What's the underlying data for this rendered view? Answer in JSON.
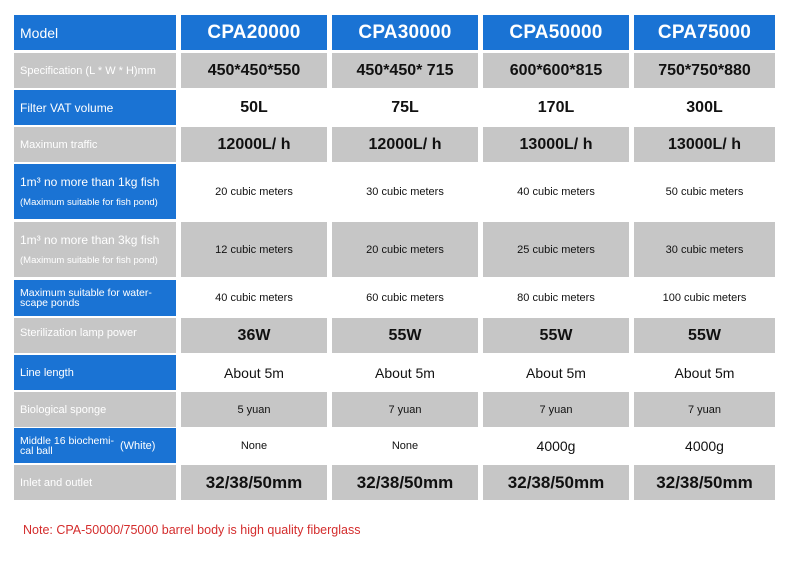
{
  "table": {
    "header_label": "Model",
    "models": [
      "CPA20000",
      "CPA30000",
      "CPA50000",
      "CPA75000"
    ],
    "rows": [
      {
        "label": "Specification (L * W * H)mm",
        "values": [
          "450*450*550",
          "450*450* 715",
          "600*600*815",
          "750*750*880"
        ]
      },
      {
        "label": "Filter VAT volume",
        "values": [
          "50L",
          "75L",
          "170L",
          "300L"
        ]
      },
      {
        "label": "Maximum traffic",
        "values": [
          "12000L/ h",
          "12000L/ h",
          "13000L/ h",
          "13000L/ h"
        ]
      },
      {
        "label": "1m³ no more than 1kg fish",
        "sublabel": "(Maximum suitable for fish pond)",
        "values": [
          "20 cubic meters",
          "30 cubic meters",
          "40 cubic meters",
          "50 cubic meters"
        ]
      },
      {
        "label": "1m³ no more than 3kg fish",
        "sublabel": "(Maximum suitable for fish pond)",
        "values": [
          "12 cubic meters",
          "20 cubic meters",
          "25 cubic meters",
          "30 cubic meters"
        ]
      },
      {
        "label": "Maximum suitable for water-scape ponds",
        "values": [
          "40 cubic meters",
          "60 cubic meters",
          "80 cubic meters",
          "100 cubic meters"
        ]
      },
      {
        "label": "Sterilization lamp power",
        "values": [
          "36W",
          "55W",
          "55W",
          "55W"
        ]
      },
      {
        "label": "Line length",
        "values": [
          "About 5m",
          "About 5m",
          "About 5m",
          "About 5m"
        ]
      },
      {
        "label": "Biological sponge",
        "values": [
          "5 yuan",
          "7 yuan",
          "7 yuan",
          "7 yuan"
        ]
      },
      {
        "label": "Middle 16 biochemi-cal ball",
        "label_suffix": "(White)",
        "values": [
          "None",
          "None",
          "4000g",
          "4000g"
        ]
      },
      {
        "label": "Inlet and outlet",
        "values": [
          "32/38/50mm",
          "32/38/50mm",
          "32/38/50mm",
          "32/38/50mm"
        ]
      }
    ]
  },
  "note": "Note: CPA-50000/75000 barrel body is high quality fiberglass",
  "colors": {
    "header_blue": "#1a73d4",
    "row_gray": "#c6c6c6",
    "note_red": "#d42d2d"
  }
}
